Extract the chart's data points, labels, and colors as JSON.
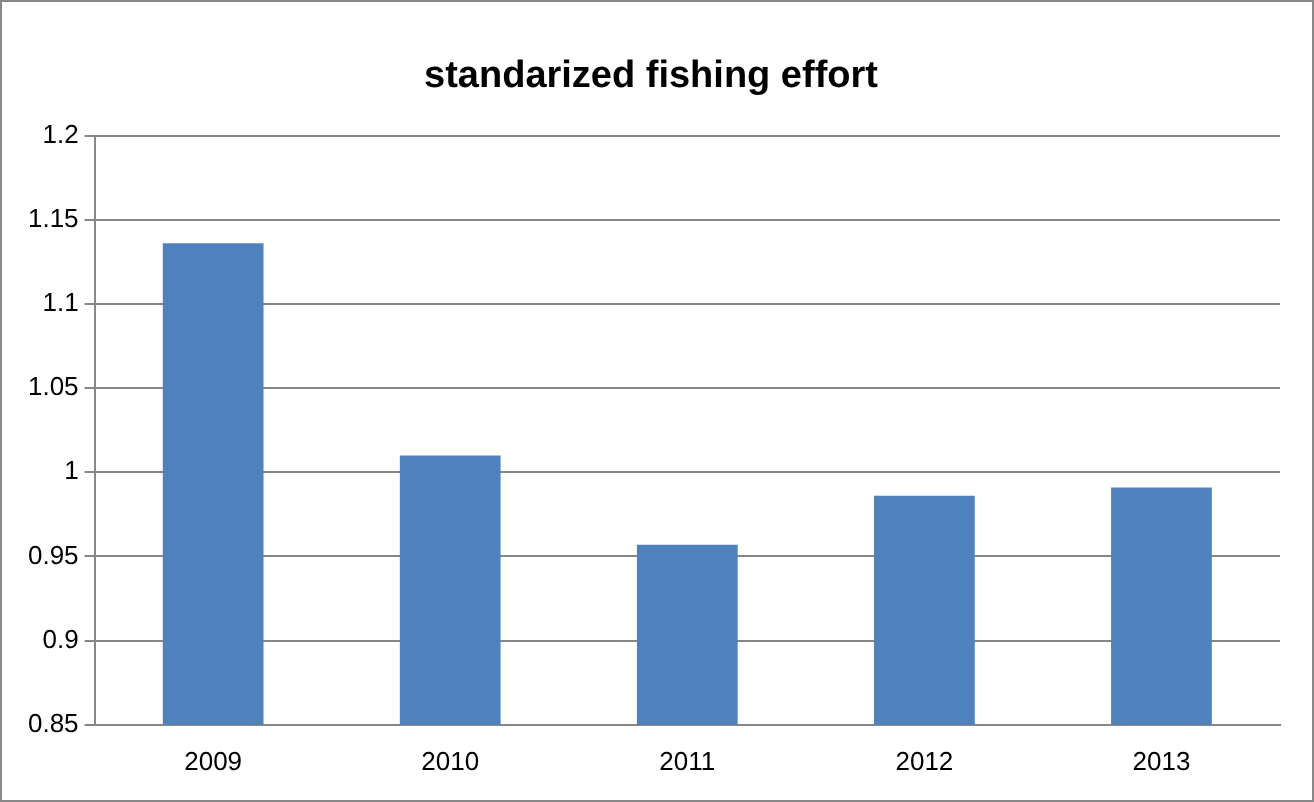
{
  "chart_data": {
    "type": "bar",
    "title": "standarized fishing effort",
    "categories": [
      "2009",
      "2010",
      "2011",
      "2012",
      "2013"
    ],
    "values": [
      1.136,
      1.01,
      0.957,
      0.986,
      0.991
    ],
    "color": "#4f81bd",
    "ylim": [
      0.85,
      1.2
    ],
    "yticks": [
      0.85,
      0.9,
      0.95,
      1,
      1.05,
      1.1,
      1.15,
      1.2
    ],
    "grid": "y",
    "legend": false
  }
}
